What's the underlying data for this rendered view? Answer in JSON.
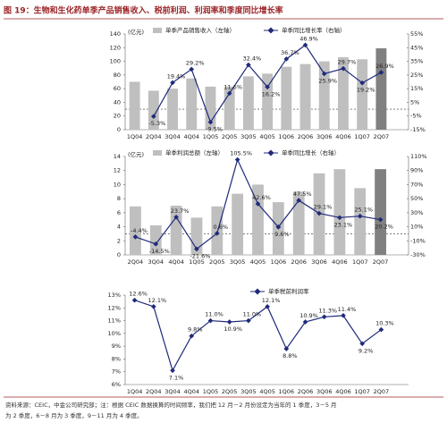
{
  "title": "图 19：生物和生化药单季产品销售收入、税前利润、利润率和季度同比增长率",
  "source": [
    "资料来源：CEIC，中金公司研究部；注：根据 CEIC 数据换算的时间频率，我们把 12 月－2 月份设定为当年的 1 季度，3－5 月",
    "为 2 季度，6－8 月为 3 季度，9－11 月为 4 季度。"
  ],
  "chart_data": [
    {
      "type": "combo",
      "y_label": "(亿元)",
      "categories": [
        "1Q04",
        "2Q04",
        "3Q04",
        "4Q04",
        "1Q05",
        "2Q05",
        "3Q05",
        "4Q05",
        "1Q06",
        "2Q06",
        "3Q06",
        "4Q06",
        "1Q07",
        "2Q07"
      ],
      "series": [
        {
          "name": "单季产品销售收入（左轴）",
          "type": "bar",
          "color": "#bfbfbf",
          "highlight_color": "#808080",
          "values": [
            70,
            57,
            60,
            75,
            63,
            63,
            78,
            82,
            92,
            96,
            100,
            106,
            103,
            119
          ]
        },
        {
          "name": "单季同比增长率（右轴）",
          "type": "line",
          "axis": "y2",
          "color": "#1f2a7a",
          "values": [
            null,
            -5.3,
            19.4,
            29.2,
            -9.5,
            11.6,
            32.4,
            16.2,
            36.7,
            46.9,
            25.9,
            29.7,
            19.2,
            26.9
          ],
          "value_labels": [
            null,
            "-5.3%",
            "19.4%",
            "29.2%",
            "-9.5%",
            "11.6%",
            "32.4%",
            "16.2%",
            "36.7%",
            "46.9%",
            "25.9%",
            "29.7%",
            "19.2%",
            "26.9%"
          ]
        }
      ],
      "ylim": [
        0,
        140
      ],
      "yticks": [
        0,
        20,
        40,
        60,
        80,
        100,
        120,
        140
      ],
      "y2lim": [
        -15,
        55
      ],
      "y2ticks": [
        {
          "value": -15,
          "label": "-15%"
        },
        {
          "value": -5,
          "label": "-5%"
        },
        {
          "value": 5,
          "label": "5%"
        },
        {
          "value": 15,
          "label": "15%"
        },
        {
          "value": 25,
          "label": "25%"
        },
        {
          "value": 35,
          "label": "35%"
        },
        {
          "value": 45,
          "label": "45%"
        },
        {
          "value": 55,
          "label": "55%"
        }
      ]
    },
    {
      "type": "combo",
      "y_label": "(亿元)",
      "categories": [
        "2Q04",
        "3Q04",
        "4Q04",
        "1Q05",
        "2Q05",
        "3Q05",
        "4Q05",
        "1Q06",
        "2Q06",
        "3Q06",
        "4Q06",
        "1Q07",
        "2Q07"
      ],
      "series": [
        {
          "name": "单季利润总额（左轴）",
          "type": "bar",
          "color": "#bfbfbf",
          "highlight_color": "#808080",
          "values": [
            6.9,
            4.2,
            7.0,
            5.3,
            6.9,
            8.7,
            10.0,
            7.5,
            9.0,
            11.6,
            12.2,
            9.5,
            12.2
          ]
        },
        {
          "name": "单季同比增长（右轴）",
          "type": "line",
          "axis": "y2",
          "color": "#1f2a7a",
          "values": [
            -4.4,
            -14.5,
            23.7,
            -21.6,
            0.6,
            105.5,
            42.6,
            9.6,
            47.5,
            29.1,
            23.1,
            25.1,
            20.2
          ],
          "value_labels": [
            "-4.4%",
            "-14.5%",
            "23.7%",
            "-21.6%",
            "0.6%",
            "105.5%",
            "42.6%",
            "9.6%",
            "47.5%",
            "29.1%",
            "23.1%",
            "25.1%",
            "20.2%"
          ]
        }
      ],
      "ylim": [
        0,
        14
      ],
      "yticks": [
        0,
        2,
        4,
        6,
        8,
        10,
        12,
        14
      ],
      "y2lim": [
        -30,
        110
      ],
      "y2ticks": [
        {
          "value": -30,
          "label": "-30%"
        },
        {
          "value": -10,
          "label": "-10%"
        },
        {
          "value": 10,
          "label": "10%"
        },
        {
          "value": 30,
          "label": "30%"
        },
        {
          "value": 50,
          "label": "50%"
        },
        {
          "value": 70,
          "label": "70%"
        },
        {
          "value": 90,
          "label": "90%"
        },
        {
          "value": 110,
          "label": "110%"
        }
      ]
    },
    {
      "type": "line",
      "categories": [
        "1Q04",
        "2Q04",
        "3Q04",
        "4Q04",
        "1Q05",
        "2Q05",
        "3Q05",
        "4Q05",
        "1Q06",
        "2Q06",
        "3Q06",
        "4Q06",
        "1Q07",
        "2Q07"
      ],
      "series": [
        {
          "name": "单季税前利润率",
          "type": "line",
          "color": "#1f2a7a",
          "values": [
            12.6,
            12.1,
            7.1,
            9.8,
            11.0,
            10.9,
            11.0,
            12.1,
            8.8,
            10.9,
            11.3,
            11.4,
            9.2,
            10.3
          ],
          "value_labels": [
            "12.6%",
            "12.1%",
            "7.1%",
            "9.8%",
            "11.0%",
            "10.9%",
            "11.0%",
            "12.1%",
            "8.8%",
            "10.9%",
            "11.3%",
            "11.4%",
            "9.2%",
            "10.3%"
          ]
        }
      ],
      "ylim": [
        6,
        13
      ],
      "yticks": [
        {
          "value": 6,
          "label": "6%"
        },
        {
          "value": 7,
          "label": "7%"
        },
        {
          "value": 8,
          "label": "8%"
        },
        {
          "value": 9,
          "label": "9%"
        },
        {
          "value": 10,
          "label": "10%"
        },
        {
          "value": 11,
          "label": "11%"
        },
        {
          "value": 12,
          "label": "12%"
        },
        {
          "value": 13,
          "label": "13%"
        }
      ]
    }
  ]
}
